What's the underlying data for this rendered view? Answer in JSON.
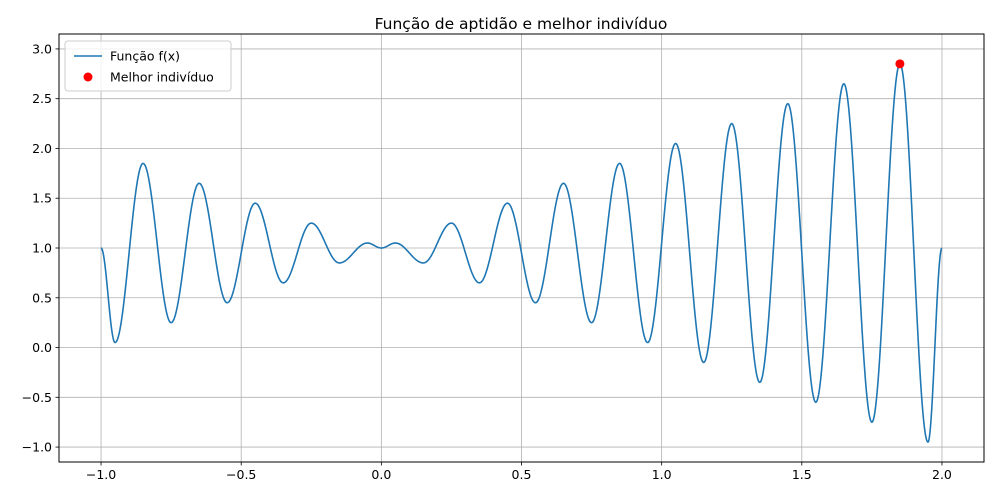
{
  "chart_data": {
    "type": "line",
    "title": "Função de aptidão e melhor indivíduo",
    "xlabel": "",
    "ylabel": "",
    "xlim": [
      -1.15,
      2.15
    ],
    "ylim": [
      -1.15,
      3.15
    ],
    "xticks": [
      -1.0,
      -0.5,
      0.0,
      0.5,
      1.0,
      1.5,
      2.0
    ],
    "xtick_labels": [
      "−1.0",
      "−0.5",
      "0.0",
      "0.5",
      "1.0",
      "1.5",
      "2.0"
    ],
    "yticks": [
      -1.0,
      -0.5,
      0.0,
      0.5,
      1.0,
      1.5,
      2.0,
      2.5,
      3.0
    ],
    "ytick_labels": [
      "−1.0",
      "−0.5",
      "0.0",
      "0.5",
      "1.0",
      "1.5",
      "2.0",
      "2.5",
      "3.0"
    ],
    "grid": true,
    "legend_position": "top-left",
    "series": [
      {
        "name": "Função f(x)",
        "kind": "line",
        "color": "#1f77b4",
        "x": [
          -1.0,
          -0.95,
          -0.85,
          -0.75,
          -0.65,
          -0.55,
          -0.45,
          -0.35,
          -0.25,
          -0.15,
          -0.05,
          0.0,
          0.05,
          0.15,
          0.25,
          0.35,
          0.45,
          0.55,
          0.65,
          0.75,
          0.85,
          0.95,
          1.05,
          1.15,
          1.25,
          1.35,
          1.45,
          1.55,
          1.65,
          1.75,
          1.85,
          1.95,
          2.0
        ],
        "y": [
          1.0,
          0.05,
          1.85,
          0.25,
          1.65,
          0.45,
          1.45,
          0.65,
          1.25,
          0.85,
          1.05,
          1.0,
          1.05,
          0.85,
          1.25,
          0.65,
          1.45,
          0.45,
          1.65,
          0.25,
          1.85,
          0.05,
          2.05,
          -0.15,
          2.25,
          -0.35,
          2.45,
          -0.55,
          2.65,
          -0.75,
          2.85,
          -0.95,
          1.0
        ]
      },
      {
        "name": "Melhor indivíduo",
        "kind": "scatter",
        "color": "#ff0000",
        "x": [
          1.85
        ],
        "y": [
          2.85
        ]
      }
    ]
  }
}
